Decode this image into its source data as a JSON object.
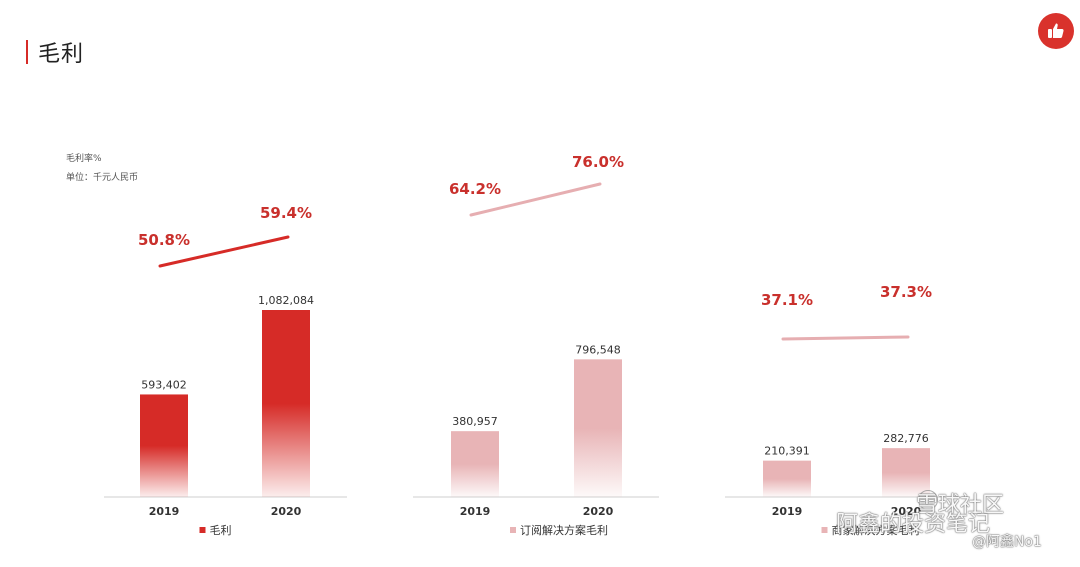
{
  "page": {
    "title": "毛利"
  },
  "notes": {
    "rate": "毛利率%",
    "unit": "单位：千元人民币"
  },
  "colors": {
    "accent": "#d62b27",
    "primary": "#d62b27",
    "secondary": "#e8b4b6",
    "line_secondary": "#e6aeb1"
  },
  "icons": {
    "badge": "thumbs-up-icon"
  },
  "watermark": {
    "site": "雪球社区",
    "blog": "阿鑫的投资笔记",
    "user": "@阿鑫No1"
  },
  "chart_data": [
    {
      "type": "bar",
      "categories": [
        "2019",
        "2020"
      ],
      "values": [
        593402,
        1082084
      ],
      "value_labels": [
        "593,402",
        "1,082,084"
      ],
      "legend": "毛利",
      "color": "#d62b27",
      "rate_labels": [
        "50.8%",
        "59.4%"
      ],
      "rates": [
        50.8,
        59.4
      ],
      "line_color": "#d62b27"
    },
    {
      "type": "bar",
      "categories": [
        "2019",
        "2020"
      ],
      "values": [
        380957,
        796548
      ],
      "value_labels": [
        "380,957",
        "796,548"
      ],
      "legend": "订阅解决方案毛利",
      "color": "#e8b4b6",
      "rate_labels": [
        "64.2%",
        "76.0%"
      ],
      "rates": [
        64.2,
        76.0
      ],
      "line_color": "#e6aeb1"
    },
    {
      "type": "bar",
      "categories": [
        "2019",
        "2020"
      ],
      "values": [
        210391,
        282776
      ],
      "value_labels": [
        "210,391",
        "282,776"
      ],
      "legend": "商家解决方案毛利",
      "color": "#e8b4b6",
      "rate_labels": [
        "37.1%",
        "37.3%"
      ],
      "rates": [
        37.1,
        37.3
      ],
      "line_color": "#e6aeb1"
    }
  ]
}
